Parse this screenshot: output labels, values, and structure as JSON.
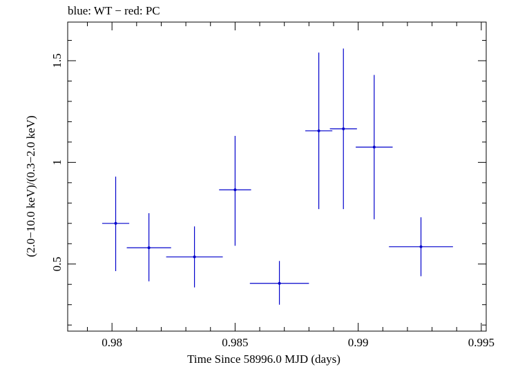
{
  "chart_data": {
    "type": "scatter",
    "title": "blue: WT − red: PC",
    "xlabel": "Time Since 58996.0 MJD (days)",
    "ylabel": "(2.0−10.0 keV)/(0.3−2.0 keV)",
    "xlim": [
      0.9782,
      0.9952
    ],
    "ylim": [
      0.17,
      1.69
    ],
    "xticks": [
      0.98,
      0.985,
      0.99,
      0.995
    ],
    "xtick_labels": [
      "0.98",
      "0.985",
      "0.99",
      "0.995"
    ],
    "yticks": [
      0.5,
      1.0,
      1.5
    ],
    "ytick_labels": [
      "0.5",
      "1",
      "1.5"
    ],
    "grid": false,
    "series": [
      {
        "color": "#0000cc",
        "points": [
          {
            "x": 0.98015,
            "xerr": 0.00055,
            "y": 0.7,
            "ylo": 0.465,
            "yhi": 0.93
          },
          {
            "x": 0.9815,
            "xerr": 0.0009,
            "y": 0.58,
            "ylo": 0.415,
            "yhi": 0.75
          },
          {
            "x": 0.98335,
            "xerr": 0.00115,
            "y": 0.535,
            "ylo": 0.385,
            "yhi": 0.685
          },
          {
            "x": 0.985,
            "xerr": 0.00065,
            "y": 0.865,
            "ylo": 0.59,
            "yhi": 1.13
          },
          {
            "x": 0.9868,
            "xerr": 0.0012,
            "y": 0.405,
            "ylo": 0.3,
            "yhi": 0.515
          },
          {
            "x": 0.9884,
            "xerr": 0.00055,
            "y": 1.155,
            "ylo": 0.77,
            "yhi": 1.54
          },
          {
            "x": 0.9894,
            "xerr": 0.00055,
            "y": 1.165,
            "ylo": 0.77,
            "yhi": 1.56
          },
          {
            "x": 0.99065,
            "xerr": 0.00075,
            "y": 1.075,
            "ylo": 0.72,
            "yhi": 1.43
          },
          {
            "x": 0.99255,
            "xerr": 0.0013,
            "y": 0.585,
            "ylo": 0.44,
            "yhi": 0.73
          }
        ]
      }
    ]
  }
}
